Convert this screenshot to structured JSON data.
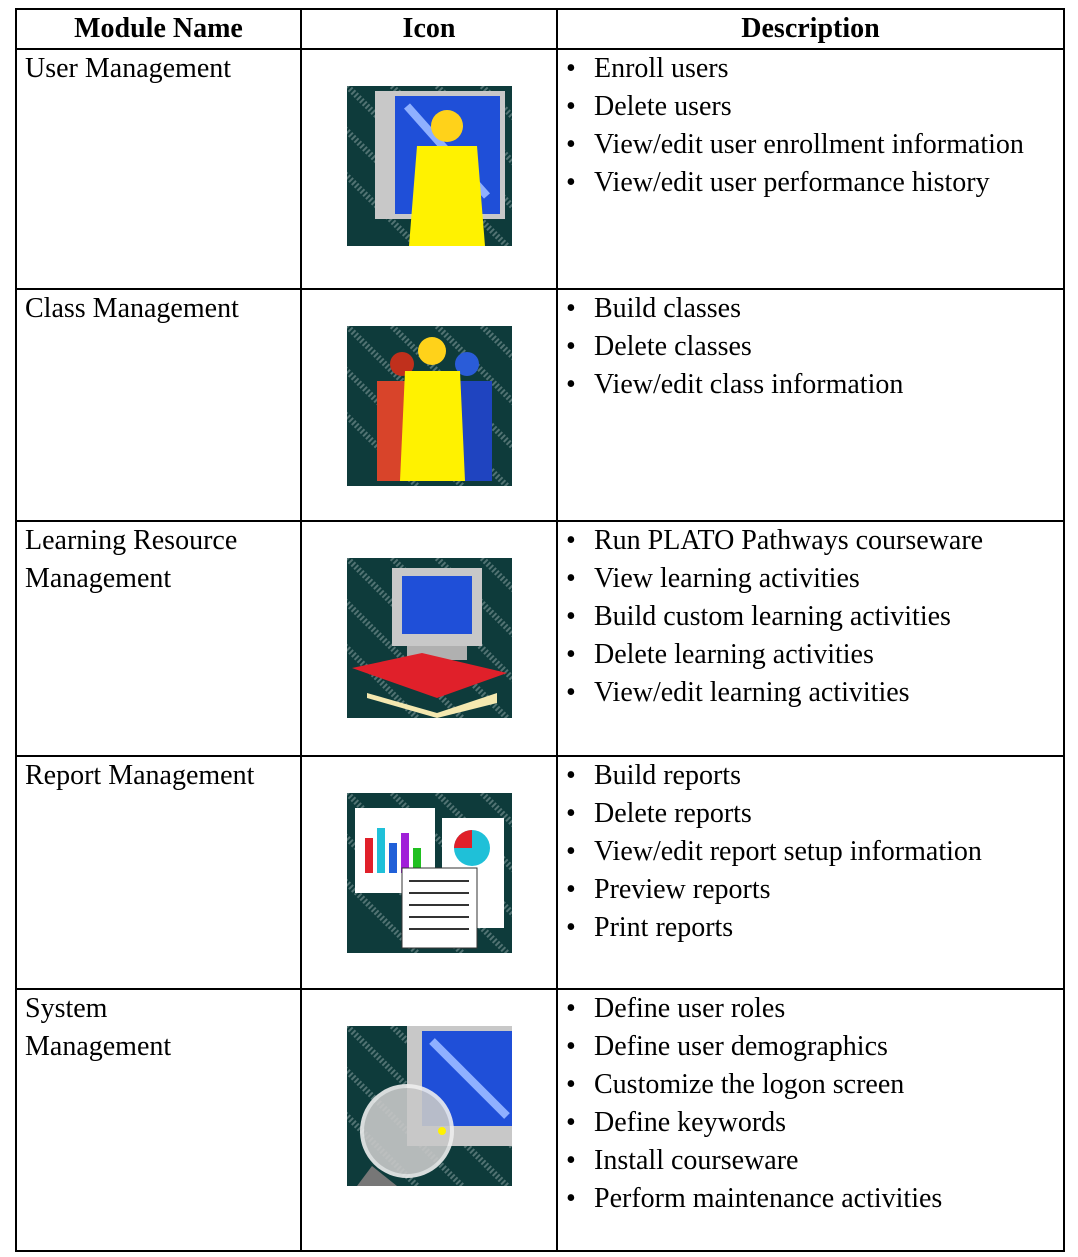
{
  "header": {
    "columns": [
      "Module Name",
      "Icon",
      "Description"
    ]
  },
  "rows": [
    {
      "name": [
        "User Management"
      ],
      "items": [
        "Enroll users",
        "Delete users",
        "View/edit user enrollment information",
        "View/edit user performance history"
      ]
    },
    {
      "name": [
        "Class Management"
      ],
      "items": [
        "Build classes",
        "Delete classes",
        "View/edit class information"
      ]
    },
    {
      "name": [
        "Learning Resource",
        "Management"
      ],
      "items": [
        "Run PLATO Pathways courseware",
        "View learning activities",
        "Build custom learning activities",
        "Delete learning activities",
        "View/edit learning activities"
      ]
    },
    {
      "name": [
        "Report Management"
      ],
      "items": [
        "Build reports",
        "Delete reports",
        "View/edit report setup information",
        "Preview reports",
        "Print reports"
      ]
    },
    {
      "name": [
        "System",
        "Management"
      ],
      "items": [
        "Define user roles",
        "Define user demographics",
        "Customize the logon screen",
        "Define keywords",
        "Install courseware",
        "Perform maintenance activities"
      ]
    }
  ]
}
